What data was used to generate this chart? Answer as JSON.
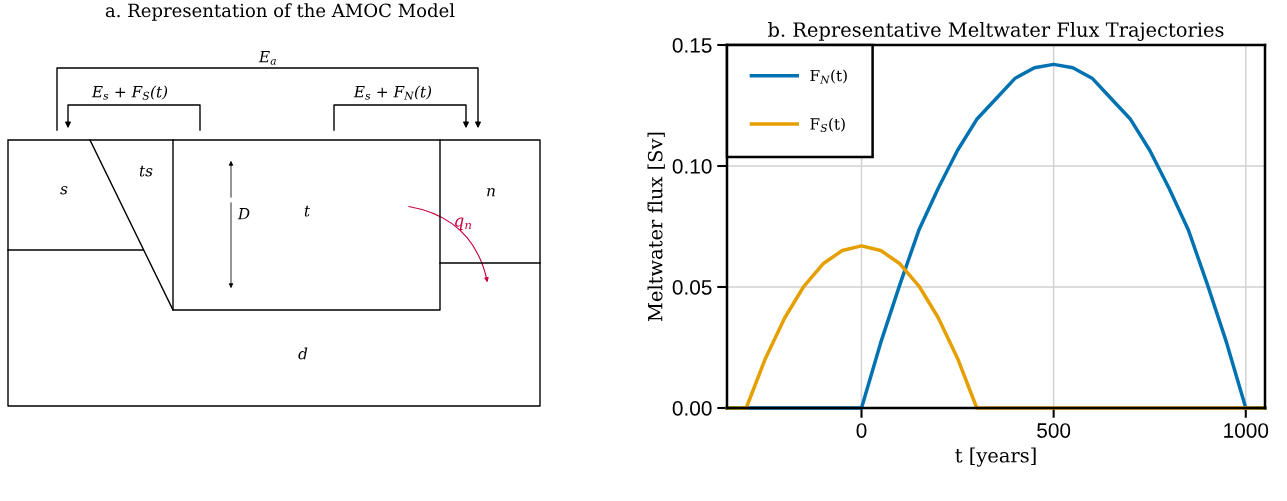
{
  "chart_data": [
    {
      "type": "other",
      "title": "a. Representation of the AMOC Model",
      "annotations": [
        "E$_{a}$",
        "E$_{s}$ + F$_{S}$(t)",
        "E$_{s}$ + F$_{N}$(t)",
        "s",
        "ts",
        "D",
        "t",
        "n",
        "q$_{n}$",
        "d"
      ]
    },
    {
      "type": "line",
      "title": "b. Representative Meltwater Flux Trajectories",
      "xlabel": "t [years]",
      "ylabel": "Meltwater flux [Sv]",
      "xlim": [
        -350,
        1050
      ],
      "xticks": [
        0,
        500,
        1000
      ],
      "ylim": [
        0,
        0.15
      ],
      "yticks": [
        {
          "value": 0,
          "label": "0.00"
        },
        {
          "value": 0.05,
          "label": "0.05"
        },
        {
          "value": 0.1,
          "label": "0.10"
        },
        {
          "value": 0.15,
          "label": "0.15"
        }
      ],
      "grid": true,
      "legend": "top left",
      "marker": "none",
      "line_style": "solid",
      "series": [
        {
          "name": "F$_{N}$(t)",
          "color": "#0072b2",
          "x": [
            -350,
            0,
            50,
            100,
            150,
            200,
            250,
            300,
            350,
            400,
            450,
            500,
            550,
            600,
            650,
            700,
            750,
            800,
            850,
            900,
            950,
            1000,
            1010,
            1050
          ],
          "values": [
            0,
            0,
            0.027,
            0.0511,
            0.0738,
            0.0909,
            0.1065,
            0.1193,
            0.1278,
            0.1363,
            0.1406,
            0.142,
            0.1406,
            0.1363,
            0.1278,
            0.1193,
            0.1065,
            0.0909,
            0.0738,
            0.0511,
            0.027,
            0,
            0,
            0
          ]
        },
        {
          "name": "F$_{S}$(t)",
          "color": "#e69f00",
          "x": [
            -350,
            -300,
            -250,
            -200,
            -150,
            -100,
            -50,
            0,
            50,
            100,
            150,
            200,
            250,
            300,
            1050
          ],
          "values": [
            0,
            0,
            0.0205,
            0.0372,
            0.0503,
            0.0596,
            0.0651,
            0.067,
            0.0651,
            0.0596,
            0.0503,
            0.0372,
            0.0205,
            0,
            0
          ]
        }
      ]
    }
  ]
}
